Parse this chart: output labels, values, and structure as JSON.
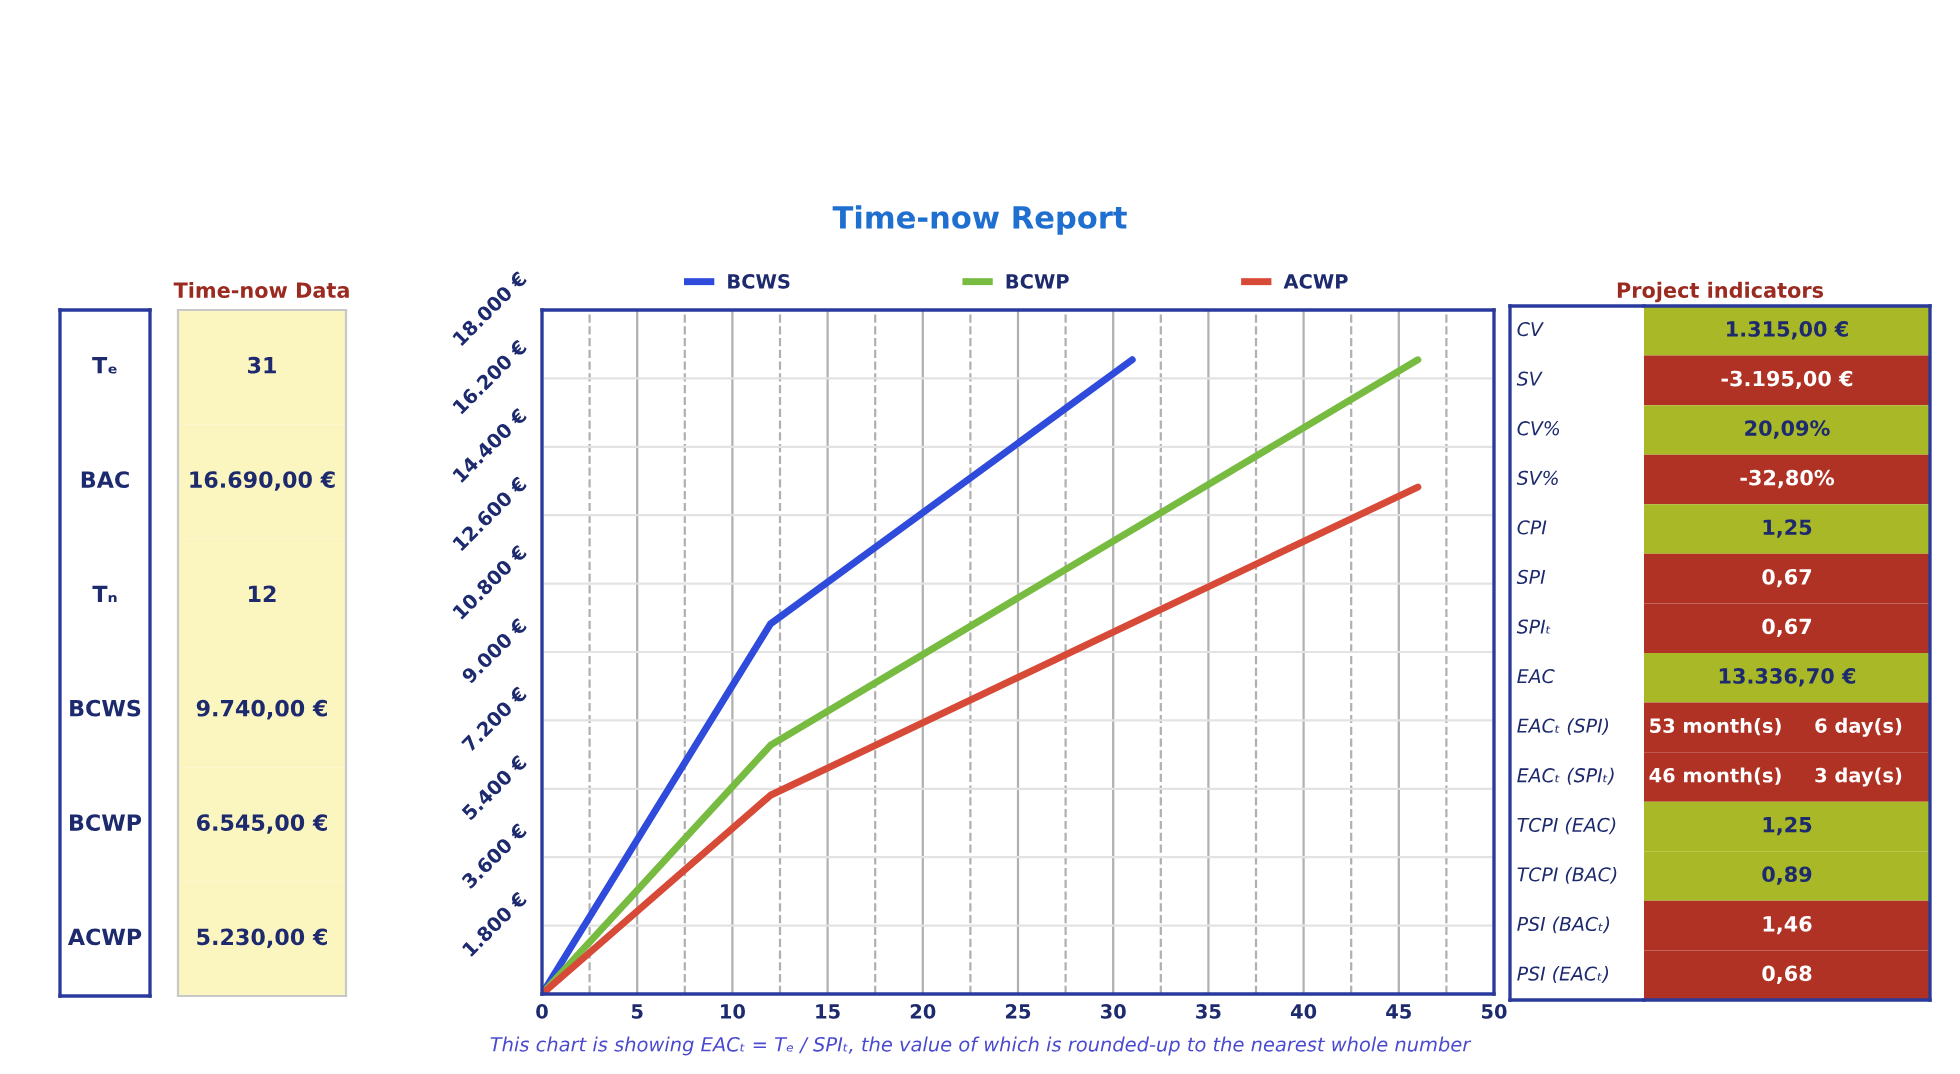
{
  "chart_data": [
    {
      "type": "other",
      "title": "Time-now Data",
      "categories": [
        "Tₑ",
        "BAC",
        "Tₙ",
        "BCWS",
        "BCWP",
        "ACWP"
      ],
      "value_labels": [
        "31",
        "16.690,00 €",
        "12",
        "9.740,00 €",
        "6.545,00 €",
        "5.230,00 €"
      ],
      "colors": [
        "#fbf5c0",
        "#fbf5c0",
        "#fbf5c0",
        "#fbf5c0",
        "#fbf5c0",
        "#fbf5c0"
      ]
    },
    {
      "type": "line",
      "title": "Time-now Report",
      "series": [
        {
          "name": "BCWS",
          "color": "#2f4bdb",
          "x": [
            0,
            12,
            31
          ],
          "values": [
            0,
            9740,
            16690
          ]
        },
        {
          "name": "BCWP",
          "color": "#77bb41",
          "x": [
            0,
            12,
            46
          ],
          "values": [
            0,
            6545,
            16690
          ]
        },
        {
          "name": "ACWP",
          "color": "#d84a38",
          "x": [
            0,
            12,
            46
          ],
          "values": [
            0,
            5230,
            13340
          ]
        }
      ],
      "xlim": [
        0,
        50
      ],
      "xticks": [
        0,
        {
          "value": 2.5,
          "label": null
        },
        5,
        {
          "value": 7.5,
          "label": null
        },
        10,
        {
          "value": 12.5,
          "label": null
        },
        15,
        {
          "value": 17.5,
          "label": null
        },
        20,
        {
          "value": 22.5,
          "label": null
        },
        25,
        {
          "value": 27.5,
          "label": null
        },
        30,
        {
          "value": 32.5,
          "label": null
        },
        35,
        {
          "value": 37.5,
          "label": null
        },
        40,
        {
          "value": 42.5,
          "label": null
        },
        45,
        {
          "value": 47.5,
          "label": null
        },
        50
      ],
      "ylim": [
        0,
        18000
      ],
      "yticks": [
        {
          "value": 1800,
          "label": "1.800 €"
        },
        {
          "value": 3600,
          "label": "3.600 €"
        },
        {
          "value": 5400,
          "label": "5.400 €"
        },
        {
          "value": 7200,
          "label": "7.200 €"
        },
        {
          "value": 9000,
          "label": "9.000 €"
        },
        {
          "value": 10800,
          "label": "10.800 €"
        },
        {
          "value": 12600,
          "label": "12.600 €"
        },
        {
          "value": 14400,
          "label": "14.400 €"
        },
        {
          "value": 16200,
          "label": "16.200 €"
        },
        {
          "value": 18000,
          "label": "18.000 €"
        }
      ],
      "grid": true,
      "legend": "top",
      "annotations": [
        "This chart is showing EACₜ = Tₑ / SPIₜ, the value of which is rounded-up to the nearest whole number"
      ]
    },
    {
      "type": "other",
      "title": "Project indicators",
      "categories": [
        "CV",
        "SV",
        "CV%",
        "SV%",
        "CPI",
        "SPI",
        "SPIₜ",
        "EAC",
        "EACₜ (SPI)",
        "EACₜ (SPIₜ)",
        "TCPI (EAC)",
        "TCPI (BAC)",
        "PSI (BACₜ)",
        "PSI (EACₜ)"
      ],
      "value_labels": [
        "1.315,00 €",
        "-3.195,00 €",
        "20,09%",
        "-32,80%",
        "1,25",
        "0,67",
        "0,67",
        "13.336,70 €",
        [
          "53 month(s)",
          "6 day(s)"
        ],
        [
          "46 month(s)",
          "3 day(s)"
        ],
        "1,25",
        "0,89",
        "1,46",
        "0,68"
      ],
      "colors": [
        "#a8b826",
        "#b03224",
        "#a8b826",
        "#b03224",
        "#a8b826",
        "#b03224",
        "#b03224",
        "#a8b826",
        "#b03224",
        "#b03224",
        "#a8b826",
        "#a8b826",
        "#b03224",
        "#b03224"
      ]
    }
  ]
}
